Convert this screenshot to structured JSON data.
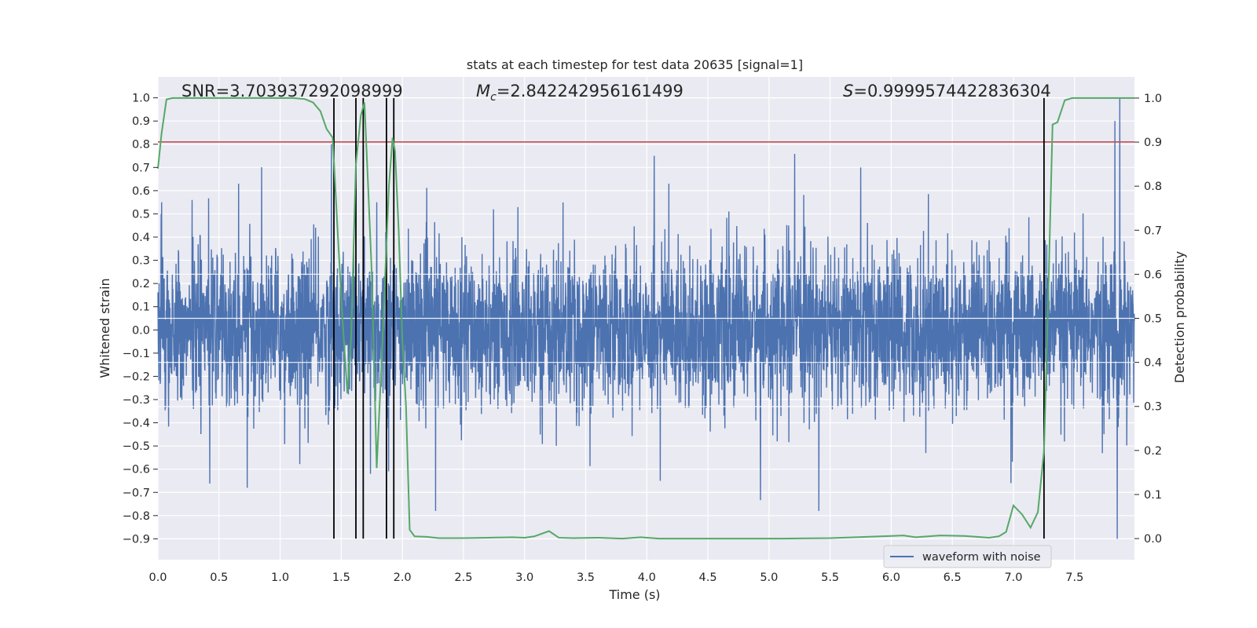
{
  "chart_data": {
    "type": "line",
    "title": "stats at each timestep for test data 20635 [signal=1]",
    "xlabel": "Time (s)",
    "ylabel": "Whitened strain",
    "y2label": "Detection probability",
    "xlim": [
      0.0,
      7.99
    ],
    "ylim": [
      -0.99,
      1.09
    ],
    "y2lim": [
      -0.048,
      1.048
    ],
    "xticks": [
      "0.0",
      "0.5",
      "1.0",
      "1.5",
      "2.0",
      "2.5",
      "3.0",
      "3.5",
      "4.0",
      "4.5",
      "5.0",
      "5.5",
      "6.0",
      "6.5",
      "7.0",
      "7.5"
    ],
    "yticks": [
      "−0.9",
      "−0.8",
      "−0.7",
      "−0.6",
      "−0.5",
      "−0.4",
      "−0.3",
      "−0.2",
      "−0.1",
      "0.0",
      "0.1",
      "0.2",
      "0.3",
      "0.4",
      "0.5",
      "0.6",
      "0.7",
      "0.8",
      "0.9",
      "1.0"
    ],
    "y2ticks": [
      "0.0",
      "0.1",
      "0.2",
      "0.3",
      "0.4",
      "0.5",
      "0.6",
      "0.7",
      "0.8",
      "0.9",
      "1.0"
    ],
    "grid": true,
    "legend_position": "lower right",
    "annotations": {
      "snr": "SNR=3.703937292098999",
      "mc_symbol": "M",
      "mc_sub": "c",
      "mc_value": "=2.842242956161499",
      "s_symbol": "S",
      "s_value": "=0.9999574422836304"
    },
    "series": [
      {
        "name": "waveform with noise",
        "axis": "left",
        "color": "#4c72b0",
        "style": "noise trace (dense, ~8000 samples)",
        "peaks": [
          {
            "x": 0.03,
            "y": 0.55
          },
          {
            "x": 0.28,
            "y": 0.56
          },
          {
            "x": 0.66,
            "y": 0.63
          },
          {
            "x": 0.73,
            "y": 0.68
          },
          {
            "x": 1.42,
            "y": 0.8
          },
          {
            "x": 1.68,
            "y": 0.8
          },
          {
            "x": 1.79,
            "y": 0.55
          },
          {
            "x": 4.06,
            "y": 0.75
          },
          {
            "x": 4.18,
            "y": 0.63
          },
          {
            "x": 5.75,
            "y": 0.7
          },
          {
            "x": 7.83,
            "y": 0.9
          },
          {
            "x": 7.87,
            "y": 1.0
          }
        ],
        "troughs": [
          {
            "x": 0.73,
            "y": -0.68
          },
          {
            "x": 1.74,
            "y": -0.62
          },
          {
            "x": 4.11,
            "y": -0.65
          },
          {
            "x": 6.98,
            "y": -0.66
          },
          {
            "x": 7.85,
            "y": -0.9
          }
        ]
      },
      {
        "name": "",
        "axis": "right",
        "color": "#55a868",
        "x": [
          0.0,
          0.03,
          0.07,
          0.12,
          0.2,
          0.4,
          0.6,
          0.8,
          1.0,
          1.1,
          1.2,
          1.27,
          1.33,
          1.38,
          1.43,
          1.47,
          1.51,
          1.55,
          1.58,
          1.62,
          1.66,
          1.69,
          1.72,
          1.75,
          1.79,
          1.83,
          1.86,
          1.89,
          1.92,
          1.94,
          1.97,
          2.0,
          2.03,
          2.06,
          2.1,
          2.2,
          2.3,
          2.5,
          2.7,
          2.9,
          3.0,
          3.08,
          3.2,
          3.28,
          3.4,
          3.6,
          3.8,
          3.95,
          4.1,
          4.3,
          4.5,
          4.8,
          5.1,
          5.5,
          5.8,
          6.0,
          6.1,
          6.2,
          6.4,
          6.6,
          6.8,
          6.88,
          6.94,
          7.0,
          7.07,
          7.14,
          7.2,
          7.25,
          7.28,
          7.32,
          7.36,
          7.42,
          7.48,
          7.55,
          7.7,
          7.99
        ],
        "y": [
          0.84,
          0.92,
          0.997,
          1.0,
          1.0,
          1.0,
          1.0,
          1.0,
          1.0,
          1.0,
          0.998,
          0.99,
          0.97,
          0.93,
          0.91,
          0.7,
          0.5,
          0.33,
          0.45,
          0.85,
          0.96,
          0.99,
          0.8,
          0.6,
          0.16,
          0.4,
          0.6,
          0.8,
          0.91,
          0.88,
          0.7,
          0.45,
          0.3,
          0.02,
          0.005,
          0.004,
          0.001,
          0.001,
          0.002,
          0.003,
          0.002,
          0.005,
          0.017,
          0.002,
          0.001,
          0.002,
          0.0,
          0.003,
          0.0,
          0.0,
          0.0,
          0.0,
          0.0,
          0.001,
          0.004,
          0.006,
          0.007,
          0.003,
          0.007,
          0.006,
          0.002,
          0.005,
          0.015,
          0.075,
          0.055,
          0.025,
          0.06,
          0.2,
          0.5,
          0.94,
          0.945,
          0.995,
          1.0,
          1.0,
          1.0,
          1.0
        ]
      },
      {
        "name": "",
        "axis": "left",
        "color": "#c44e52",
        "style": "horizontal threshold line",
        "y": 0.81
      },
      {
        "name": "",
        "axis": "right",
        "color": "#000000",
        "style": "vertical marker lines from y2=0 to y2=1",
        "x": [
          1.44,
          1.62,
          1.68,
          1.87,
          1.93,
          7.25
        ]
      }
    ]
  }
}
